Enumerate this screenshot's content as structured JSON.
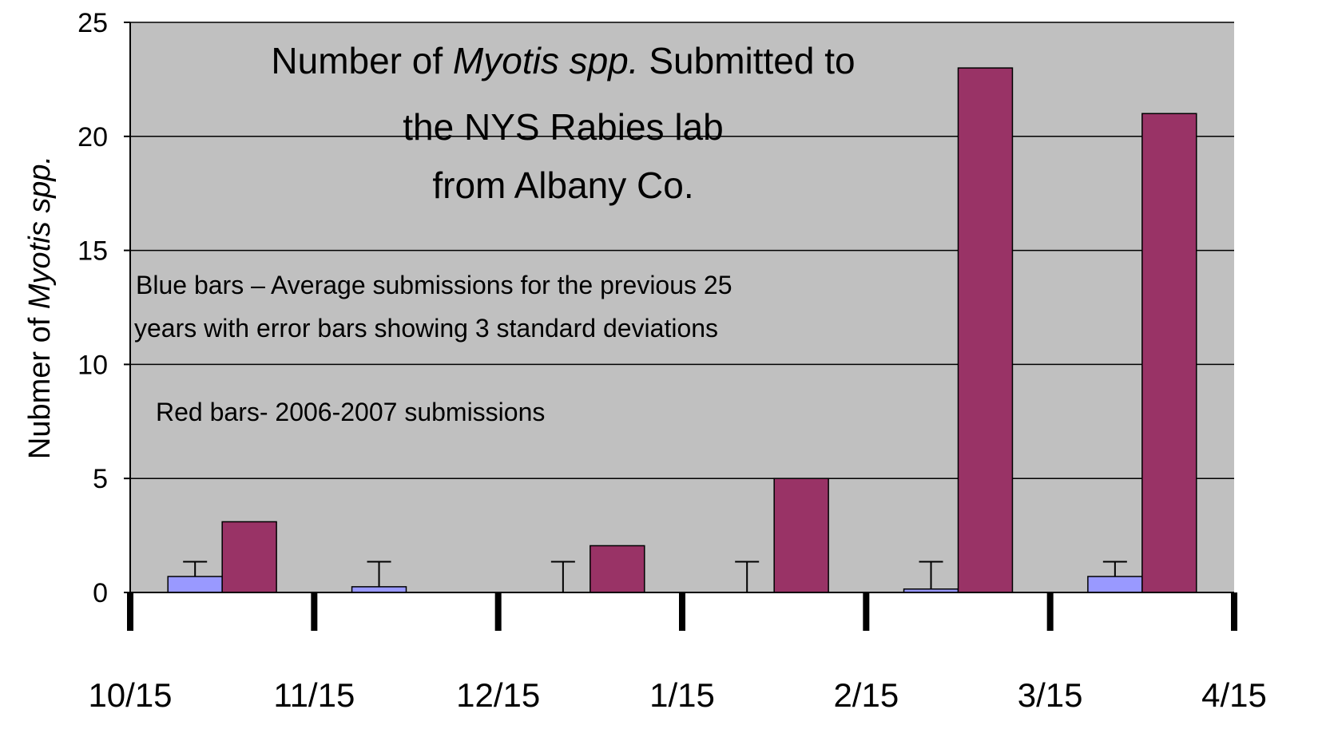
{
  "chart_data": {
    "type": "bar",
    "title": {
      "line1": [
        "Number of ",
        "Myotis spp.",
        " Submitted to"
      ],
      "line2": "the NYS Rabies lab",
      "line3": "from Albany Co."
    },
    "ylabel": [
      "Nubmer of ",
      "Myotis spp."
    ],
    "annotations": [
      "Blue bars – Average submissions for the previous 25",
      "years with error bars showing 3 standard deviations",
      "Red bars- 2006-2007 submissions"
    ],
    "xticks": [
      "10/15",
      "11/15",
      "12/15",
      "1/15",
      "2/15",
      "3/15",
      "4/15"
    ],
    "series": [
      {
        "color": "#9999ff",
        "values": [
          0.7,
          0.25,
          0,
          0,
          0.15,
          0.7
        ],
        "errors": [
          0.65,
          1.1,
          1.35,
          1.35,
          1.2,
          0.65
        ]
      },
      {
        "color": "#993366",
        "values": [
          3.1,
          0,
          2.05,
          5,
          23,
          21
        ]
      }
    ],
    "ylim": [
      0,
      25
    ],
    "yticks": [
      0,
      5,
      10,
      15,
      20,
      25
    ],
    "grid": true,
    "background": "#c0c0c0"
  }
}
